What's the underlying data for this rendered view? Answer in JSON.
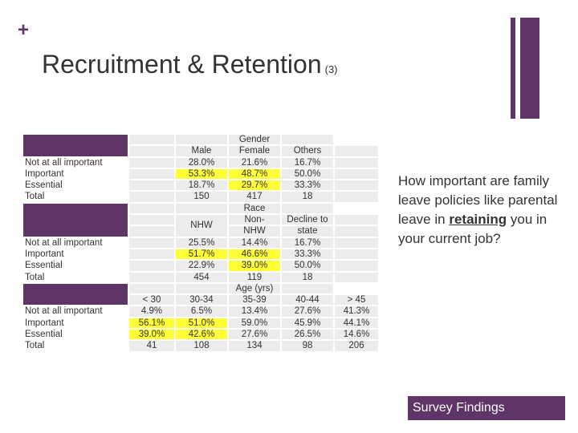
{
  "deco": {
    "plus": "+"
  },
  "title": {
    "main": "Recruitment & Retention",
    "sub": "(3)"
  },
  "gender": {
    "header": "Gender",
    "columns": [
      "Male",
      "Female",
      "Others"
    ],
    "rows": [
      {
        "label": "Not at all important",
        "values": [
          "28.0%",
          "21.6%",
          "16.7%"
        ]
      },
      {
        "label": "Important",
        "values": [
          "53.3%",
          "48.7%",
          "50.0%"
        ]
      },
      {
        "label": "Essential",
        "values": [
          "18.7%",
          "29.7%",
          "33.3%"
        ]
      },
      {
        "label": "Total",
        "values": [
          "150",
          "417",
          "18"
        ]
      }
    ]
  },
  "race": {
    "header": "Race",
    "columns": [
      "NHW",
      "Non-NHW",
      "Decline to state"
    ],
    "col2_a": "Non-",
    "col2_b": "NHW",
    "col3_a": "Decline to",
    "col3_b": "state",
    "rows": [
      {
        "label": "Not at all important",
        "values": [
          "25.5%",
          "14.4%",
          "16.7%"
        ]
      },
      {
        "label": "Important",
        "values": [
          "51.7%",
          "46.6%",
          "33.3%"
        ]
      },
      {
        "label": "Essential",
        "values": [
          "22.9%",
          "39.0%",
          "50.0%"
        ]
      },
      {
        "label": "Total",
        "values": [
          "454",
          "119",
          "18"
        ]
      }
    ]
  },
  "age": {
    "header": "Age (yrs)",
    "columns": [
      "< 30",
      "30-34",
      "35-39",
      "40-44",
      "> 45"
    ],
    "rows": [
      {
        "label": "Not at all important",
        "values": [
          "4.9%",
          "6.5%",
          "13.4%",
          "27.6%",
          "41.3%"
        ]
      },
      {
        "label": "Important",
        "values": [
          "56.1%",
          "51.0%",
          "59.0%",
          "45.9%",
          "44.1%"
        ]
      },
      {
        "label": "Essential",
        "values": [
          "39.0%",
          "42.6%",
          "27.6%",
          "26.5%",
          "14.6%"
        ]
      },
      {
        "label": "Total",
        "values": [
          "41",
          "108",
          "134",
          "98",
          "206"
        ]
      }
    ]
  },
  "question": {
    "before": "How important are family leave policies like parental leave in",
    "emphasis": "retaining",
    "after": "you in your current job?"
  },
  "badge": "Survey Findings",
  "colors": {
    "accent": "#5e3566",
    "highlight": "#ffff33",
    "cell": "#ececec"
  }
}
